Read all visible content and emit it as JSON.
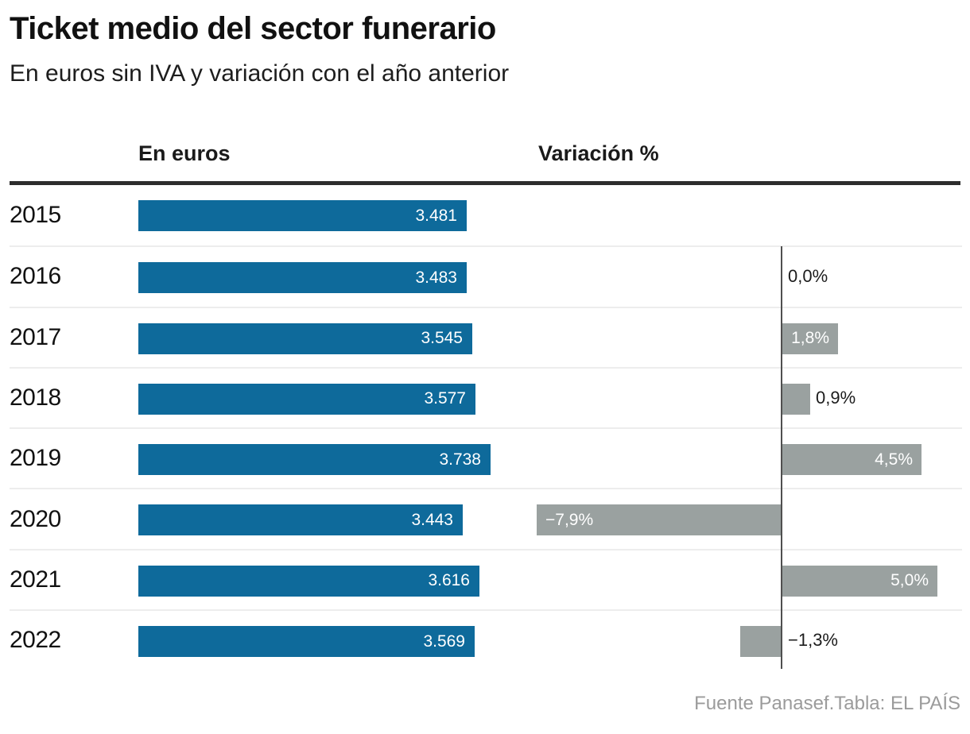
{
  "header": {
    "title": "Ticket medio del sector funerario",
    "subtitle": "En euros sin IVA y variación con el año anterior"
  },
  "columns": {
    "euros": "En euros",
    "variation": "Variación %"
  },
  "footer": {
    "credit": "Fuente Panasef.Tabla: EL PAÍS"
  },
  "colors": {
    "euro_bar": "#0e6a9b",
    "variation_bar": "#9aa1a0",
    "axis_line": "#4f4f4f",
    "header_rule": "#2d2d2d",
    "row_separator": "#ededed",
    "inside_label": "#ffffff",
    "outside_label": "#1c1c1c",
    "source_text": "#9b9b9b"
  },
  "chart_data": {
    "type": "bar",
    "orientation": "horizontal",
    "title": "Ticket medio del sector funerario",
    "subtitle": "En euros sin IVA y variación con el año anterior",
    "categories": [
      "2015",
      "2016",
      "2017",
      "2018",
      "2019",
      "2020",
      "2021",
      "2022"
    ],
    "series": [
      {
        "name": "En euros",
        "values": [
          3481,
          3483,
          3545,
          3577,
          3738,
          3443,
          3616,
          3569
        ],
        "labels": [
          "3.481",
          "3.483",
          "3.545",
          "3.577",
          "3.738",
          "3.443",
          "3.616",
          "3.569"
        ]
      },
      {
        "name": "Variación %",
        "values": [
          null,
          0.0,
          1.8,
          0.9,
          4.5,
          -7.9,
          5.0,
          -1.3
        ],
        "labels": [
          "",
          "0,0%",
          "1,8%",
          "0,9%",
          "4,5%",
          "−7,9%",
          "5,0%",
          "−1,3%"
        ],
        "label_inside": [
          false,
          false,
          true,
          false,
          true,
          true,
          true,
          false
        ]
      }
    ],
    "axis_ranges": {
      "euros": [
        0,
        3738
      ],
      "variation_pct": [
        -7.9,
        5.0
      ]
    },
    "grid": "row-separators-only",
    "legend_position": "column-headers",
    "source": "Fuente Panasef.Tabla: EL PAÍS"
  }
}
